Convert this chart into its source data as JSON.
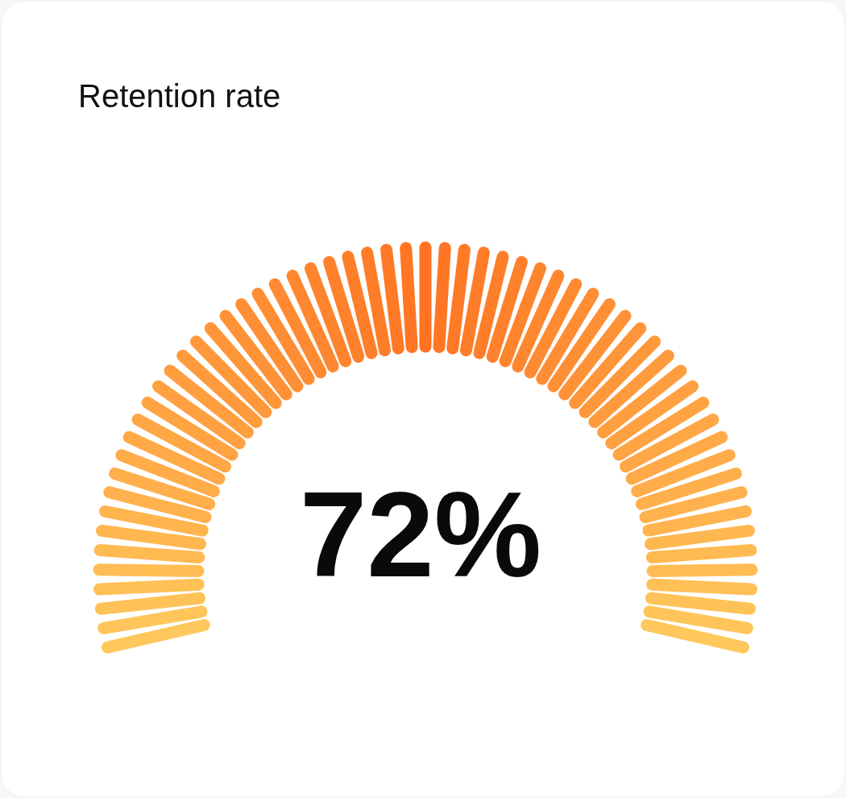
{
  "chart_data": {
    "type": "other",
    "title": "Retention rate",
    "values": [
      72
    ],
    "value_labels": [
      "72%"
    ]
  }
}
